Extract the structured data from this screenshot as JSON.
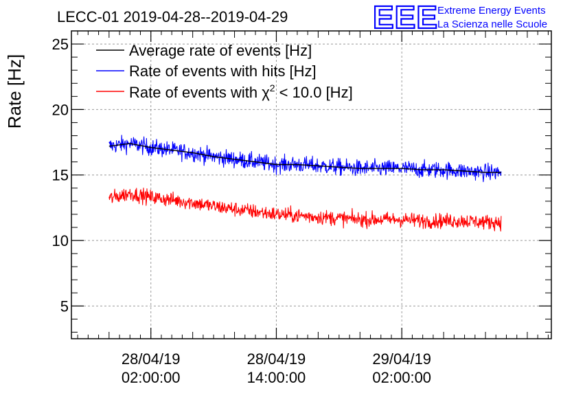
{
  "chart_data": {
    "type": "line",
    "title": "LECC-01 2019-04-28--2019-04-29",
    "ylabel": "Rate [Hz]",
    "xlabel": "",
    "ylim": [
      2.5,
      26
    ],
    "yticks": [
      5,
      10,
      15,
      20,
      25
    ],
    "ytick_labels": [
      "5",
      "10",
      "15",
      "20",
      "25"
    ],
    "xlim_hours": [
      -7.6,
      38.3
    ],
    "xticks_hours": [
      0,
      12,
      24
    ],
    "xtick_labels": [
      [
        "28/04/19",
        "02:00:00"
      ],
      [
        "28/04/19",
        "14:00:00"
      ],
      [
        "29/04/19",
        "02:00:00"
      ]
    ],
    "grid": true,
    "legend_position": "top-left",
    "series": [
      {
        "name": "Average rate of events [Hz]",
        "color": "#000000",
        "x_hours": [
          -4.0,
          -2.0,
          0.0,
          2.0,
          4.0,
          6.0,
          8.0,
          10.0,
          12.0,
          14.0,
          16.0,
          18.0,
          20.0,
          22.0,
          24.0,
          26.0,
          28.0,
          30.0,
          32.0,
          33.5
        ],
        "values": [
          17.2,
          17.4,
          17.1,
          16.9,
          16.7,
          16.4,
          16.2,
          16.0,
          15.8,
          15.8,
          15.7,
          15.6,
          15.5,
          15.5,
          15.5,
          15.4,
          15.4,
          15.3,
          15.2,
          15.2
        ]
      },
      {
        "name": "Rate of events with hits [Hz]",
        "color": "#0000ff",
        "x_hours": [
          -4.0,
          -2.0,
          0.0,
          2.0,
          4.0,
          6.0,
          8.0,
          10.0,
          12.0,
          14.0,
          16.0,
          18.0,
          20.0,
          22.0,
          24.0,
          26.0,
          28.0,
          30.0,
          32.0,
          33.5
        ],
        "values": [
          17.2,
          17.4,
          17.1,
          16.9,
          16.7,
          16.4,
          16.2,
          16.0,
          15.8,
          15.8,
          15.7,
          15.6,
          15.5,
          15.5,
          15.5,
          15.4,
          15.4,
          15.3,
          15.2,
          15.2
        ],
        "noise": 0.45
      },
      {
        "name": "Rate of events with χ² < 10.0 [Hz]",
        "legend_parts": [
          "Rate of events with χ",
          "2",
          " < 10.0 [Hz]"
        ],
        "color": "#ff0000",
        "x_hours": [
          -4.0,
          -2.0,
          0.0,
          2.0,
          4.0,
          6.0,
          8.0,
          10.0,
          12.0,
          14.0,
          16.0,
          18.0,
          20.0,
          22.0,
          24.0,
          26.0,
          28.0,
          30.0,
          32.0,
          33.5
        ],
        "values": [
          13.2,
          13.6,
          13.3,
          13.1,
          12.9,
          12.6,
          12.4,
          12.2,
          12.0,
          11.9,
          11.8,
          11.7,
          11.6,
          11.6,
          11.6,
          11.5,
          11.5,
          11.5,
          11.4,
          11.4
        ],
        "noise": 0.4
      }
    ]
  },
  "logo": {
    "letters": "EEE",
    "line1": "Extreme Energy Events",
    "line2": "La Scienza nelle Scuole"
  }
}
